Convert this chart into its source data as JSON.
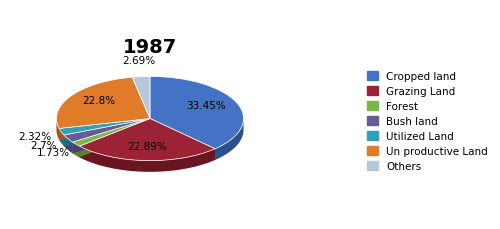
{
  "title": "1987",
  "labels": [
    "Cropped land",
    "Grazing Land",
    "Forest",
    "Bush land",
    "Utilized Land",
    "Un productive Land",
    "Others"
  ],
  "values": [
    33.45,
    22.89,
    1.73,
    2.7,
    2.32,
    22.8,
    2.69
  ],
  "colors": [
    "#4472C4",
    "#9B2335",
    "#7AB648",
    "#6B5B95",
    "#2FA0B8",
    "#E07B2A",
    "#B8C8D8"
  ],
  "dark_colors": [
    "#2A5090",
    "#6B1520",
    "#5A8030",
    "#4A3F70",
    "#1A7080",
    "#A05820",
    "#8098A8"
  ],
  "background_color": "#ffffff",
  "title_fontsize": 14,
  "label_fontsize": 7.5,
  "legend_fontsize": 7.5,
  "start_angle": 90,
  "depth": 0.12,
  "yscale": 0.45
}
